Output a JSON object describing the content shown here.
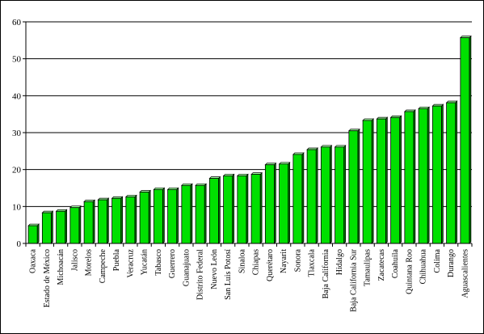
{
  "chart_data": {
    "type": "bar",
    "title": "",
    "xlabel": "",
    "ylabel": "",
    "ylim": [
      0,
      60
    ],
    "yticks": [
      0,
      10,
      20,
      30,
      40,
      50,
      60
    ],
    "grid": true,
    "bar_color": "#00e000",
    "bar_edge_color": "#000000",
    "categories": [
      "Oaxaca",
      "Estado de México",
      "Michoacán",
      "Jalisco",
      "Morelos",
      "Campeche",
      "Puebla",
      "Veracruz",
      "Yucatán",
      "Tabasco",
      "Guerrero",
      "Guanajuato",
      "Distrito Federal",
      "Nuevo León",
      "San Luis Potosí",
      "Sinaloa",
      "Chiapas",
      "Querétaro",
      "Nayarit",
      "Sonora",
      "Tlaxcala",
      "Baja California",
      "Hidalgo",
      "Baja California Sur",
      "Tamaulipas",
      "Zacatecas",
      "Coahuila",
      "Quintana Roo",
      "Chihuahua",
      "Colima",
      "Durango",
      "Aguascalientes"
    ],
    "values": [
      4.8,
      8.3,
      8.7,
      9.7,
      11.3,
      11.8,
      12.2,
      12.6,
      13.9,
      14.6,
      14.6,
      15.7,
      15.7,
      17.6,
      18.3,
      18.3,
      18.7,
      21.3,
      21.5,
      24.1,
      25.4,
      26.1,
      26.1,
      30.5,
      33.3,
      33.7,
      34.1,
      35.7,
      36.5,
      37.2,
      38.1,
      55.7
    ]
  }
}
